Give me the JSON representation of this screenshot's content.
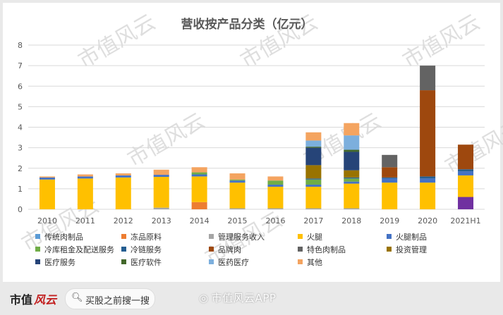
{
  "chart_data": {
    "type": "bar",
    "stacked": true,
    "title": "营收按产品分类（亿元）",
    "categories": [
      "2010",
      "2011",
      "2012",
      "2013",
      "2014",
      "2015",
      "2016",
      "2017",
      "2018",
      "2019",
      "2020",
      "2021H1"
    ],
    "ylim": [
      0,
      8
    ],
    "yticks": [
      "0",
      "1",
      "2",
      "3",
      "4",
      "5",
      "6",
      "7",
      "8"
    ],
    "grid": true,
    "legend_position": "bottom",
    "series": [
      {
        "name": "传统肉制品",
        "color": "#5b9bd5",
        "values": [
          0,
          0,
          0,
          0,
          0,
          0,
          0,
          0,
          0,
          0,
          0,
          0
        ]
      },
      {
        "name": "冻品原料",
        "color": "#ed7d31",
        "values": [
          0,
          0,
          0,
          0,
          0.35,
          0,
          0,
          0,
          0,
          0,
          0,
          0
        ]
      },
      {
        "name": "管理服务收入",
        "color": "#a5a5a5",
        "values": [
          0,
          0,
          0,
          0.08,
          0,
          0.05,
          0.05,
          0.05,
          0.05,
          0,
          0,
          0
        ]
      },
      {
        "name": "火腿",
        "color": "#ffc000",
        "values": [
          1.45,
          1.5,
          1.55,
          1.5,
          1.25,
          1.25,
          1.05,
          1.05,
          1.2,
          1.3,
          1.3,
          1.05
        ]
      },
      {
        "name": "火腿制品",
        "color": "#4472c4",
        "values": [
          0.1,
          0.1,
          0.1,
          0.1,
          0.1,
          0.1,
          0.1,
          0.1,
          0.1,
          0.2,
          0.2,
          0.2
        ]
      },
      {
        "name": "冷库租金及配送服务",
        "color": "#70ad47",
        "values": [
          0,
          0,
          0,
          0,
          0.1,
          0.05,
          0.2,
          0.25,
          0.15,
          0,
          0,
          0
        ]
      },
      {
        "name": "冷链服务",
        "color": "#255e91",
        "values": [
          0,
          0,
          0,
          0,
          0,
          0,
          0,
          0.05,
          0.05,
          0.05,
          0.1,
          0.1
        ]
      },
      {
        "name": "品牌肉",
        "color": "#9e480e",
        "values": [
          0,
          0,
          0,
          0,
          0,
          0,
          0,
          0,
          0,
          0.5,
          4.2,
          1.2
        ]
      },
      {
        "name": "特色肉制品",
        "color": "#636363",
        "values": [
          0,
          0,
          0,
          0,
          0,
          0,
          0,
          0,
          0,
          0.6,
          1.2,
          0
        ]
      },
      {
        "name": "投资管理",
        "color": "#997300",
        "values": [
          0,
          0,
          0,
          0,
          0,
          0,
          0,
          0.65,
          0.35,
          0,
          0,
          0
        ]
      },
      {
        "name": "医疗服务",
        "color": "#264478",
        "values": [
          0,
          0,
          0,
          0,
          0,
          0,
          0,
          0.85,
          0.9,
          0,
          0,
          0
        ]
      },
      {
        "name": "医疗软件",
        "color": "#43682b",
        "values": [
          0,
          0,
          0,
          0,
          0,
          0,
          0,
          0.05,
          0.1,
          0,
          0,
          0
        ]
      },
      {
        "name": "医药医疗",
        "color": "#7cafdd",
        "values": [
          0,
          0,
          0,
          0,
          0,
          0,
          0,
          0.3,
          0.7,
          0,
          0,
          0
        ]
      },
      {
        "name": "其他",
        "color": "#f4a460",
        "values": [
          0.05,
          0.1,
          0.1,
          0.25,
          0.25,
          0.3,
          0.2,
          0.4,
          0.6,
          0,
          0,
          0
        ]
      }
    ],
    "extra_series": {
      "color": "#7030a0",
      "values": [
        0,
        0,
        0,
        0,
        0,
        0,
        0,
        0,
        0,
        0,
        0,
        0.6
      ]
    }
  },
  "watermark": "市值风云",
  "footer": {
    "brand": "市值",
    "brand_logo": "风云",
    "search_text": "买股之前搜一搜",
    "weibo_text": "市值风云APP"
  }
}
